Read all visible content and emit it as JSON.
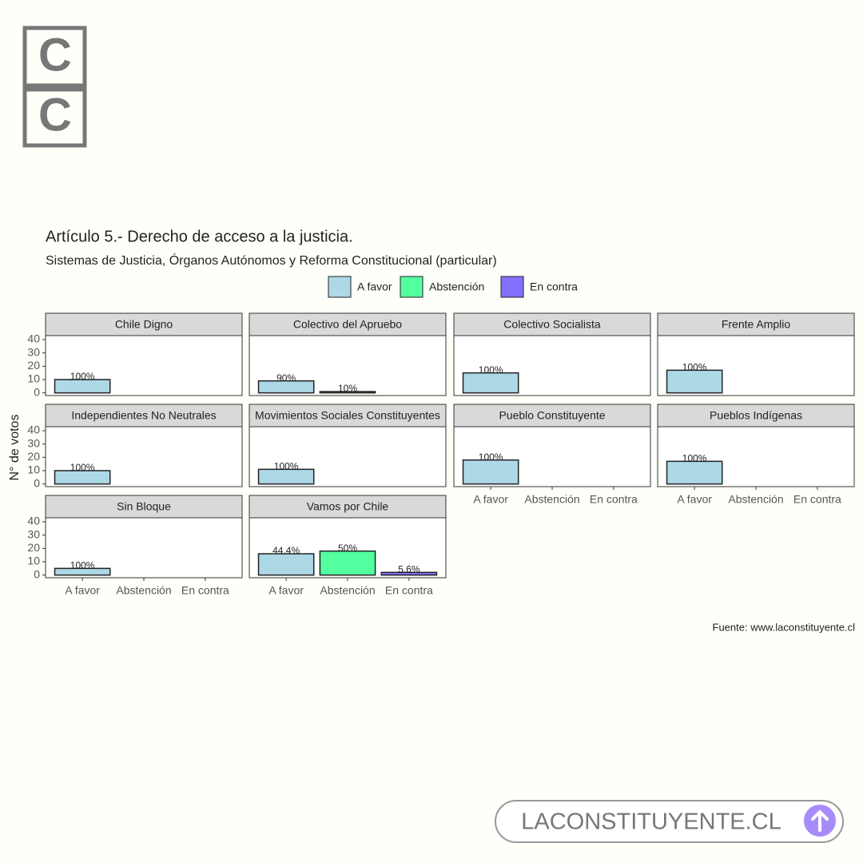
{
  "logo": [
    "C",
    "C"
  ],
  "brand_button": "LACONSTITUYENTE.CL",
  "chart_data": {
    "type": "bar",
    "title": "Artículo 5.- Derecho de acceso a la justicia.",
    "subtitle": "Sistemas de Justicia, Órganos Autónomos y Reforma Constitucional (particular)",
    "y_label": "N° de votos",
    "caption": "Fuente: www.laconstituyente.cl",
    "categories": [
      "A favor",
      "Abstención",
      "En contra"
    ],
    "colors": [
      "#add8e6",
      "#54ff9f",
      "#8470ff"
    ],
    "ylim": [
      -2,
      43
    ],
    "yticks": [
      0,
      10,
      20,
      30,
      40
    ],
    "facets": [
      {
        "name": "Chile Digno",
        "values": [
          10,
          0,
          0
        ],
        "value_labels": [
          "100%",
          null,
          null
        ]
      },
      {
        "name": "Colectivo del Apruebo",
        "values": [
          9,
          1,
          0
        ],
        "value_labels": [
          "90%",
          "10%",
          null
        ]
      },
      {
        "name": "Colectivo Socialista",
        "values": [
          15,
          0,
          0
        ],
        "value_labels": [
          "100%",
          null,
          null
        ]
      },
      {
        "name": "Frente Amplio",
        "values": [
          17,
          0,
          0
        ],
        "value_labels": [
          "100%",
          null,
          null
        ]
      },
      {
        "name": "Independientes No Neutrales",
        "values": [
          10,
          0,
          0
        ],
        "value_labels": [
          "100%",
          null,
          null
        ]
      },
      {
        "name": "Movimientos Sociales Constituyentes",
        "values": [
          11,
          0,
          0
        ],
        "value_labels": [
          "100%",
          null,
          null
        ]
      },
      {
        "name": "Pueblo Constituyente",
        "values": [
          18,
          0,
          0
        ],
        "value_labels": [
          "100%",
          null,
          null
        ]
      },
      {
        "name": "Pueblos Indígenas",
        "values": [
          17,
          0,
          0
        ],
        "value_labels": [
          "100%",
          null,
          null
        ]
      },
      {
        "name": "Sin Bloque",
        "values": [
          5,
          0,
          0
        ],
        "value_labels": [
          "100%",
          null,
          null
        ]
      },
      {
        "name": "Vamos por Chile",
        "values": [
          16,
          18,
          2
        ],
        "value_labels": [
          "44.4%",
          "50%",
          "5.6%"
        ]
      }
    ]
  }
}
